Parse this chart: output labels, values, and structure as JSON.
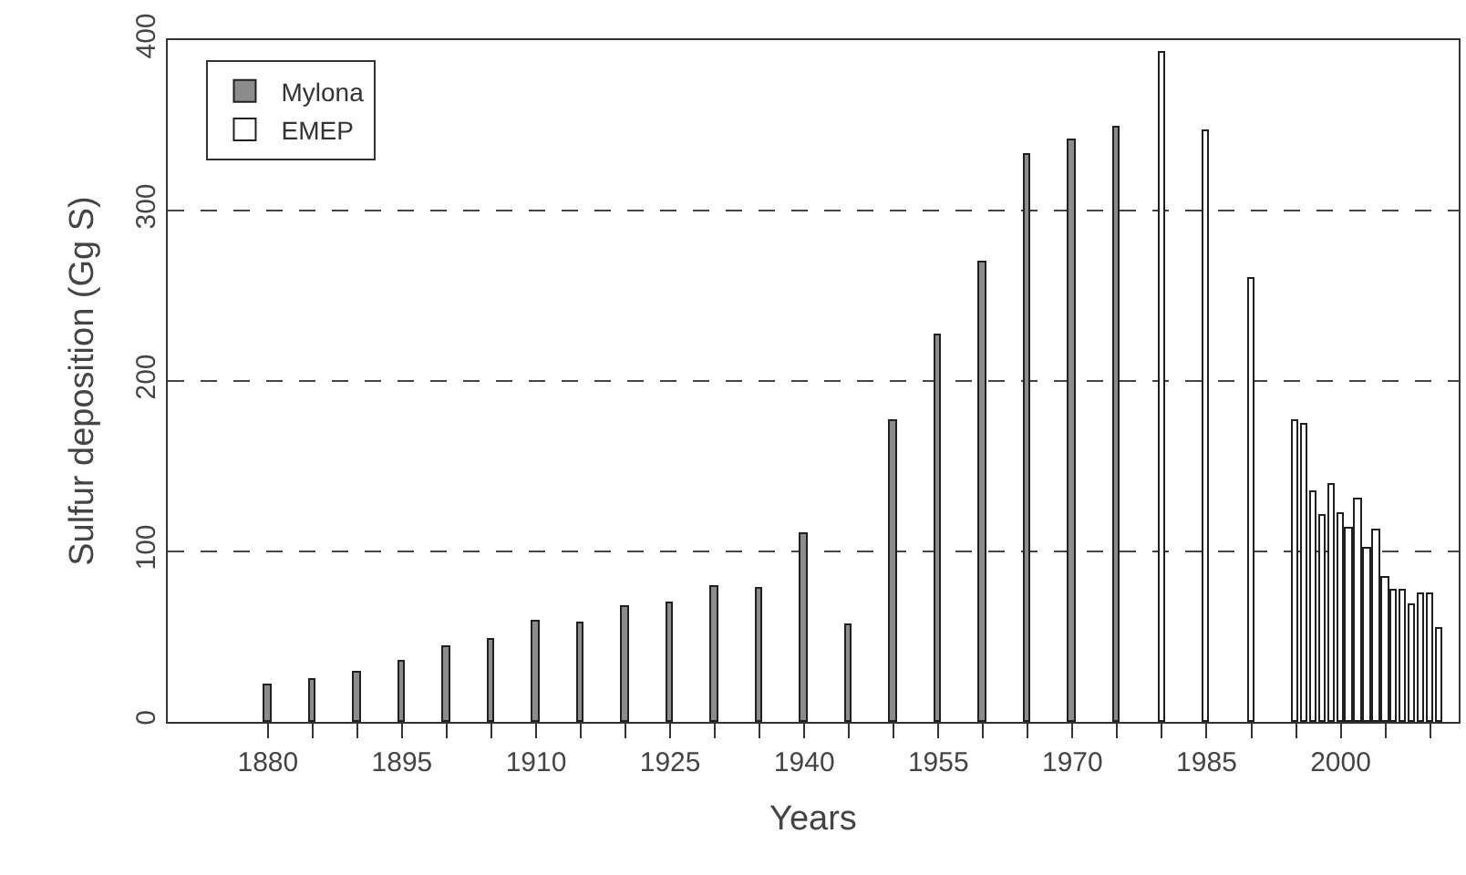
{
  "chart_data": {
    "type": "bar",
    "xlabel": "Years",
    "ylabel": "Sulfur deposition (Gg S)",
    "series": [
      {
        "name": "Mylona",
        "color": "#8c8c8c",
        "x": [
          1880,
          1885,
          1890,
          1895,
          1900,
          1905,
          1910,
          1915,
          1920,
          1925,
          1930,
          1935,
          1940,
          1945,
          1950,
          1955,
          1960,
          1965,
          1970,
          1975
        ],
        "values": [
          21,
          25,
          29,
          35,
          44,
          48,
          59,
          58,
          67,
          70,
          79,
          78,
          110,
          57,
          176,
          227,
          270,
          333,
          341,
          349
        ]
      },
      {
        "name": "EMEP",
        "color": "#ffffff",
        "x": [
          1980,
          1985,
          1990,
          1995,
          1996,
          1997,
          1998,
          1999,
          2000,
          2001,
          2002,
          2003,
          2004,
          2005,
          2006,
          2007,
          2008,
          2009,
          2010,
          2011
        ],
        "values": [
          393,
          347,
          260,
          176,
          174,
          135,
          121,
          139,
          122,
          113,
          130,
          102,
          112,
          85,
          77,
          77,
          68,
          75,
          75,
          55
        ]
      }
    ],
    "xlim": [
      1868.8,
      2013.2
    ],
    "xticks": [
      1880,
      {
        "value": 1885,
        "label": null
      },
      {
        "value": 1890,
        "label": null
      },
      1895,
      {
        "value": 1900,
        "label": null
      },
      {
        "value": 1905,
        "label": null
      },
      1910,
      {
        "value": 1915,
        "label": null
      },
      {
        "value": 1920,
        "label": null
      },
      1925,
      {
        "value": 1930,
        "label": null
      },
      {
        "value": 1935,
        "label": null
      },
      1940,
      {
        "value": 1945,
        "label": null
      },
      {
        "value": 1950,
        "label": null
      },
      1955,
      {
        "value": 1960,
        "label": null
      },
      {
        "value": 1965,
        "label": null
      },
      1970,
      {
        "value": 1975,
        "label": null
      },
      {
        "value": 1980,
        "label": null
      },
      1985,
      {
        "value": 1990,
        "label": null
      },
      {
        "value": 1995,
        "label": null
      },
      2000,
      {
        "value": 2005,
        "label": null
      },
      {
        "value": 2010,
        "label": null
      }
    ],
    "ylim": [
      0,
      400
    ],
    "yticks": [
      0,
      100,
      200,
      300,
      400
    ],
    "grid": "y",
    "legend": "top left"
  }
}
